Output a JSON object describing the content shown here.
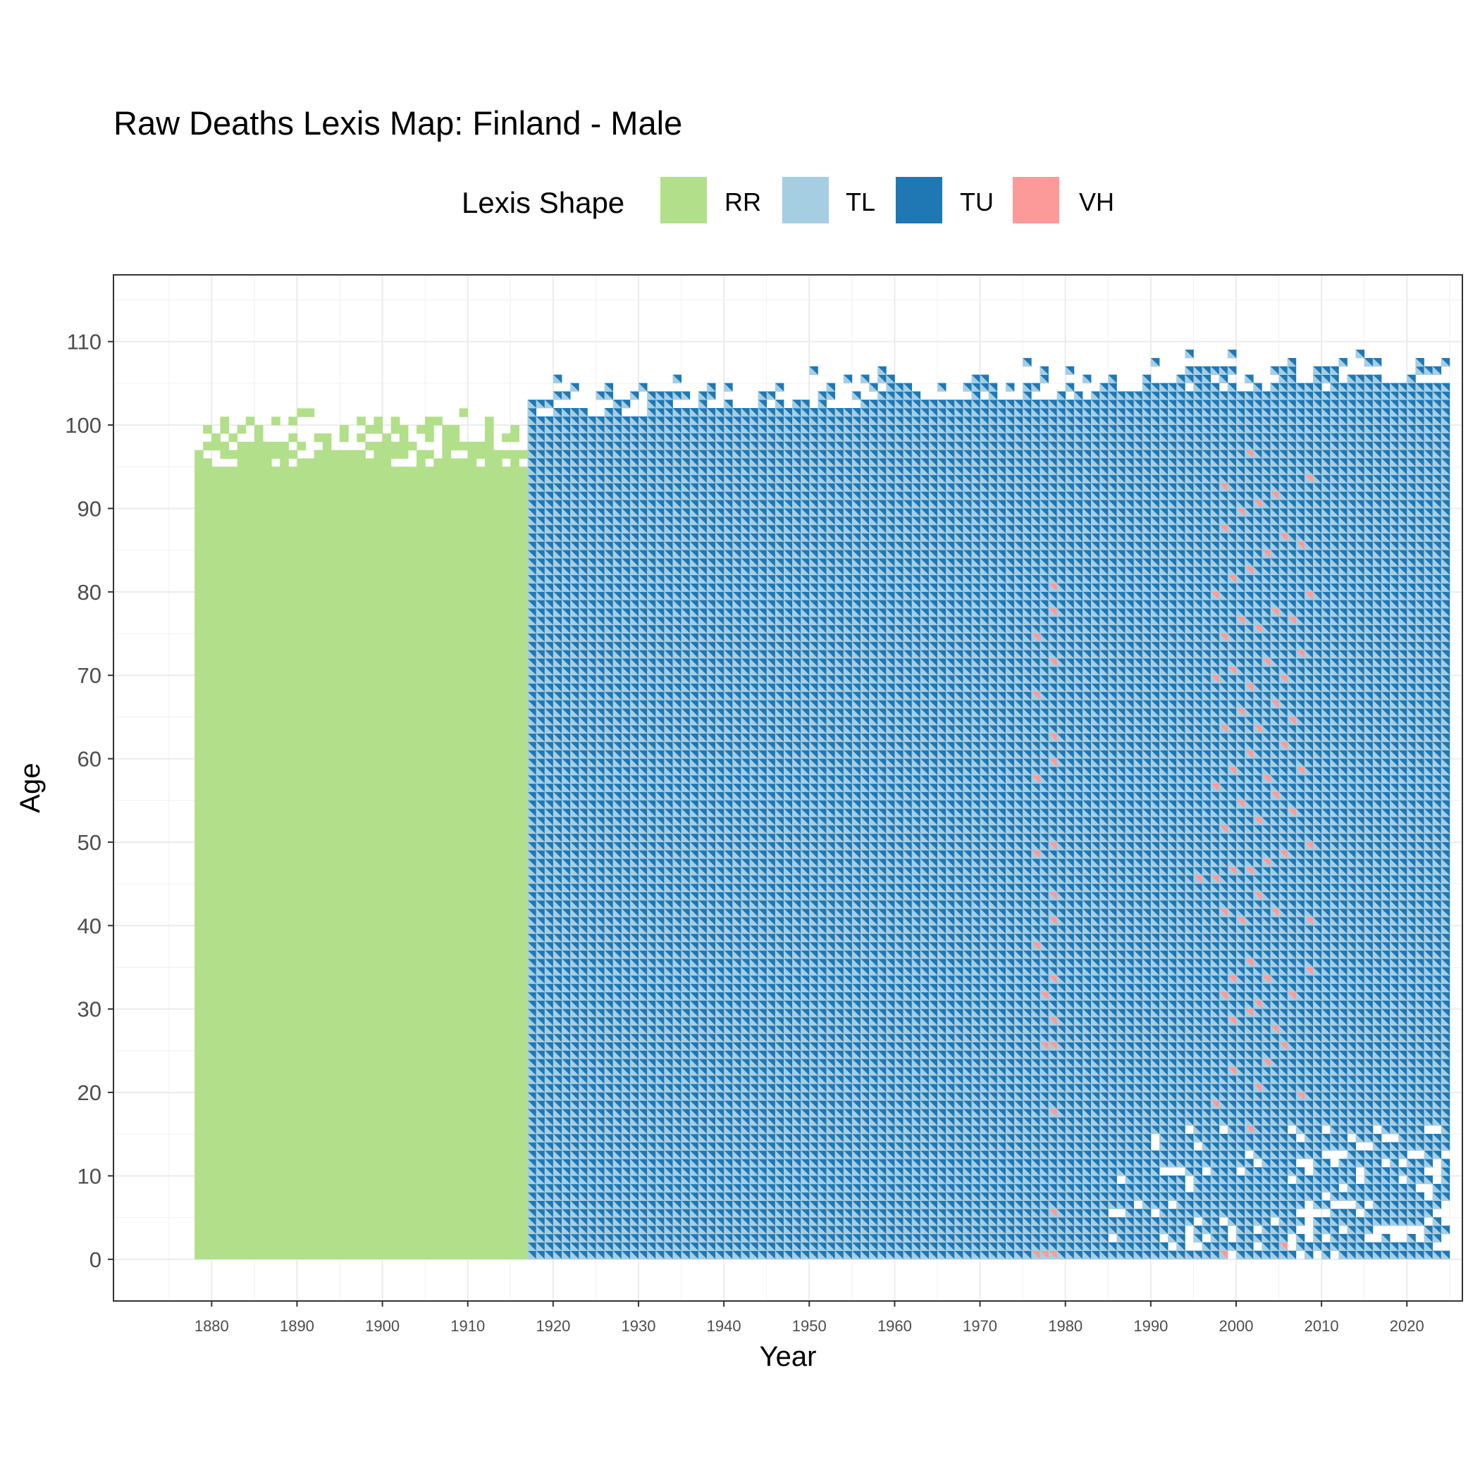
{
  "chart_data": {
    "type": "heatmap",
    "title": "Raw Deaths Lexis Map: Finland - Male",
    "xlabel": "Year",
    "ylabel": "Age",
    "xlim": [
      1868.5,
      2026.5
    ],
    "ylim": [
      -5,
      118
    ],
    "x_ticks": [
      1880,
      1890,
      1900,
      1910,
      1920,
      1930,
      1940,
      1950,
      1960,
      1970,
      1980,
      1990,
      2000,
      2010,
      2020
    ],
    "y_ticks": [
      0,
      10,
      20,
      30,
      40,
      50,
      60,
      70,
      80,
      90,
      100,
      110
    ],
    "grid": true,
    "legend": {
      "title": "Lexis Shape",
      "placement": "top",
      "entries": [
        {
          "label": "RR",
          "color": "#b2df8a"
        },
        {
          "label": "TL",
          "color": "#a6cee3"
        },
        {
          "label": "TU",
          "color": "#1f78b4"
        },
        {
          "label": "VH",
          "color": "#fb9a99"
        }
      ]
    },
    "regions": [
      {
        "shape": "RR",
        "years": [
          1878,
          1916
        ],
        "ages": [
          0,
          94
        ],
        "ragged_top_up_to_age": 103
      },
      {
        "shape": "TL+TU",
        "years": [
          1917,
          2024
        ],
        "ages": [
          0,
          100
        ],
        "ragged_top_up_to_age": 111
      }
    ],
    "vh_cells": [
      {
        "year": 1976,
        "age": 0
      },
      {
        "year": 1977,
        "age": 0
      },
      {
        "year": 1978,
        "age": 0
      },
      {
        "year": 1978,
        "age": 5
      },
      {
        "year": 1978,
        "age": 17
      },
      {
        "year": 1978,
        "age": 25
      },
      {
        "year": 1977,
        "age": 25
      },
      {
        "year": 1978,
        "age": 28
      },
      {
        "year": 1977,
        "age": 31
      },
      {
        "year": 1978,
        "age": 33
      },
      {
        "year": 1976,
        "age": 37
      },
      {
        "year": 1978,
        "age": 40
      },
      {
        "year": 1978,
        "age": 43
      },
      {
        "year": 1976,
        "age": 48
      },
      {
        "year": 1978,
        "age": 49
      },
      {
        "year": 1976,
        "age": 57
      },
      {
        "year": 1978,
        "age": 59
      },
      {
        "year": 1978,
        "age": 62
      },
      {
        "year": 1976,
        "age": 67
      },
      {
        "year": 1978,
        "age": 71
      },
      {
        "year": 1976,
        "age": 74
      },
      {
        "year": 1978,
        "age": 77
      },
      {
        "year": 1978,
        "age": 80
      },
      {
        "year": 1998,
        "age": 0
      },
      {
        "year": 2005,
        "age": 1
      },
      {
        "year": 1997,
        "age": 18
      },
      {
        "year": 2001,
        "age": 15
      },
      {
        "year": 2002,
        "age": 20
      },
      {
        "year": 2003,
        "age": 23
      },
      {
        "year": 1999,
        "age": 22
      },
      {
        "year": 2007,
        "age": 19
      },
      {
        "year": 2005,
        "age": 25
      },
      {
        "year": 1999,
        "age": 28
      },
      {
        "year": 2001,
        "age": 29
      },
      {
        "year": 2002,
        "age": 30
      },
      {
        "year": 1998,
        "age": 31
      },
      {
        "year": 2004,
        "age": 27
      },
      {
        "year": 2006,
        "age": 31
      },
      {
        "year": 1999,
        "age": 33
      },
      {
        "year": 2001,
        "age": 35
      },
      {
        "year": 2003,
        "age": 33
      },
      {
        "year": 2008,
        "age": 34
      },
      {
        "year": 1998,
        "age": 41
      },
      {
        "year": 2000,
        "age": 40
      },
      {
        "year": 2002,
        "age": 43
      },
      {
        "year": 2004,
        "age": 41
      },
      {
        "year": 2008,
        "age": 40
      },
      {
        "year": 1995,
        "age": 45
      },
      {
        "year": 1997,
        "age": 45
      },
      {
        "year": 1999,
        "age": 46
      },
      {
        "year": 2001,
        "age": 46
      },
      {
        "year": 2003,
        "age": 47
      },
      {
        "year": 2005,
        "age": 48
      },
      {
        "year": 2008,
        "age": 49
      },
      {
        "year": 1998,
        "age": 51
      },
      {
        "year": 2000,
        "age": 54
      },
      {
        "year": 2002,
        "age": 52
      },
      {
        "year": 2004,
        "age": 55
      },
      {
        "year": 2006,
        "age": 53
      },
      {
        "year": 1997,
        "age": 56
      },
      {
        "year": 1999,
        "age": 58
      },
      {
        "year": 2001,
        "age": 60
      },
      {
        "year": 2003,
        "age": 57
      },
      {
        "year": 2005,
        "age": 61
      },
      {
        "year": 2007,
        "age": 58
      },
      {
        "year": 1998,
        "age": 63
      },
      {
        "year": 2000,
        "age": 65
      },
      {
        "year": 2002,
        "age": 63
      },
      {
        "year": 2004,
        "age": 66
      },
      {
        "year": 2006,
        "age": 64
      },
      {
        "year": 1997,
        "age": 69
      },
      {
        "year": 1999,
        "age": 70
      },
      {
        "year": 2001,
        "age": 68
      },
      {
        "year": 2003,
        "age": 71
      },
      {
        "year": 2005,
        "age": 69
      },
      {
        "year": 2007,
        "age": 72
      },
      {
        "year": 1998,
        "age": 74
      },
      {
        "year": 2000,
        "age": 76
      },
      {
        "year": 2002,
        "age": 75
      },
      {
        "year": 2004,
        "age": 77
      },
      {
        "year": 2006,
        "age": 76
      },
      {
        "year": 2008,
        "age": 79
      },
      {
        "year": 1997,
        "age": 79
      },
      {
        "year": 1999,
        "age": 81
      },
      {
        "year": 2001,
        "age": 82
      },
      {
        "year": 2003,
        "age": 84
      },
      {
        "year": 2005,
        "age": 86
      },
      {
        "year": 2007,
        "age": 85
      },
      {
        "year": 1998,
        "age": 87
      },
      {
        "year": 2000,
        "age": 89
      },
      {
        "year": 2002,
        "age": 90
      },
      {
        "year": 1998,
        "age": 92
      },
      {
        "year": 2001,
        "age": 96
      },
      {
        "year": 2004,
        "age": 91
      },
      {
        "year": 2008,
        "age": 93
      }
    ]
  }
}
